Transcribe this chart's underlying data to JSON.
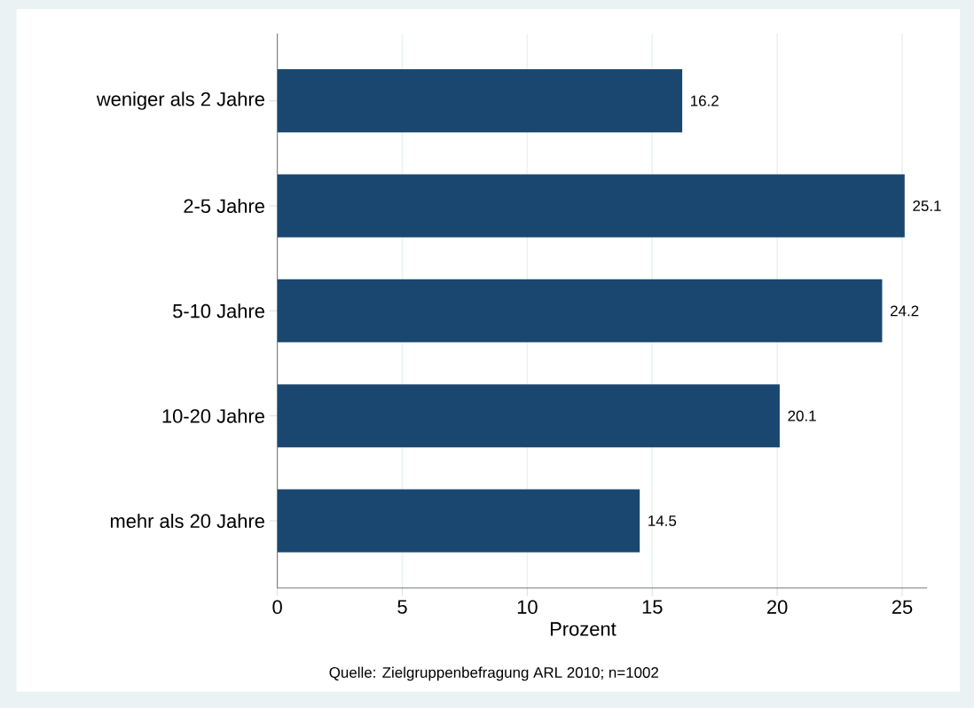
{
  "chart_data": {
    "type": "bar",
    "orientation": "horizontal",
    "categories": [
      "weniger als 2 Jahre",
      "2-5 Jahre",
      "5-10 Jahre",
      "10-20 Jahre",
      "mehr als 20 Jahre"
    ],
    "values": [
      16.2,
      25.1,
      24.2,
      20.1,
      14.5
    ],
    "color": "#1a476f",
    "xlabel": "Prozent",
    "xlim": [
      0,
      26
    ],
    "xticks": [
      0,
      5,
      10,
      15,
      20,
      25
    ],
    "grid": "x",
    "data_labels": true,
    "annotations": [
      "Quelle: Zielgruppenbefragung ARL 2010; n=1002"
    ]
  }
}
